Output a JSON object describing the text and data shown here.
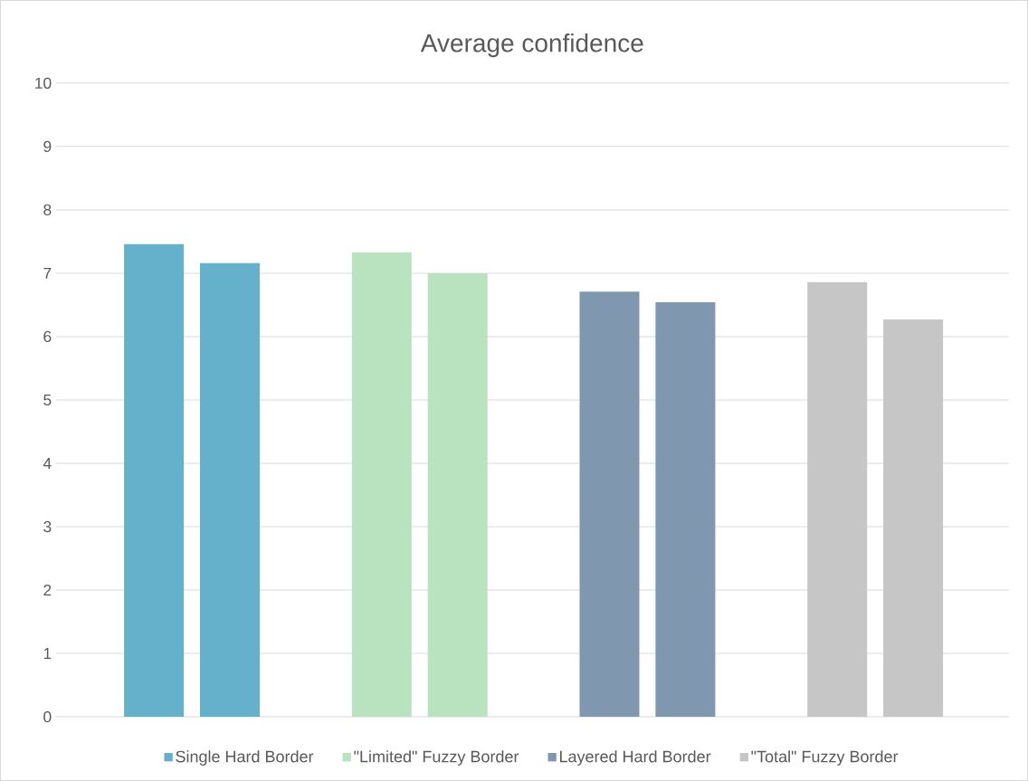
{
  "chart_data": {
    "type": "bar",
    "title": "Average confidence",
    "categories": [
      null,
      null,
      null,
      null,
      null,
      null,
      null,
      null
    ],
    "series": [
      {
        "name": "Single Hard Border",
        "color": "#65b1cc",
        "values": [
          7.46,
          7.16,
          null,
          null,
          null,
          null,
          null,
          null
        ]
      },
      {
        "name": "\"Limited\" Fuzzy Border",
        "color": "#b9e2bf",
        "values": [
          null,
          null,
          7.33,
          7.0,
          null,
          null,
          null,
          null
        ]
      },
      {
        "name": "Layered Hard Border",
        "color": "#8097b0",
        "values": [
          null,
          null,
          null,
          null,
          6.71,
          6.54,
          null,
          null
        ]
      },
      {
        "name": "\"Total\" Fuzzy Border",
        "color": "#c6c6c6",
        "values": [
          null,
          null,
          null,
          null,
          null,
          null,
          6.86,
          6.27
        ]
      }
    ],
    "ylim": [
      0,
      10
    ],
    "yticks": [
      0,
      1,
      2,
      3,
      4,
      5,
      6,
      7,
      8,
      9,
      10
    ],
    "grid": "y",
    "legend": "bottom"
  }
}
